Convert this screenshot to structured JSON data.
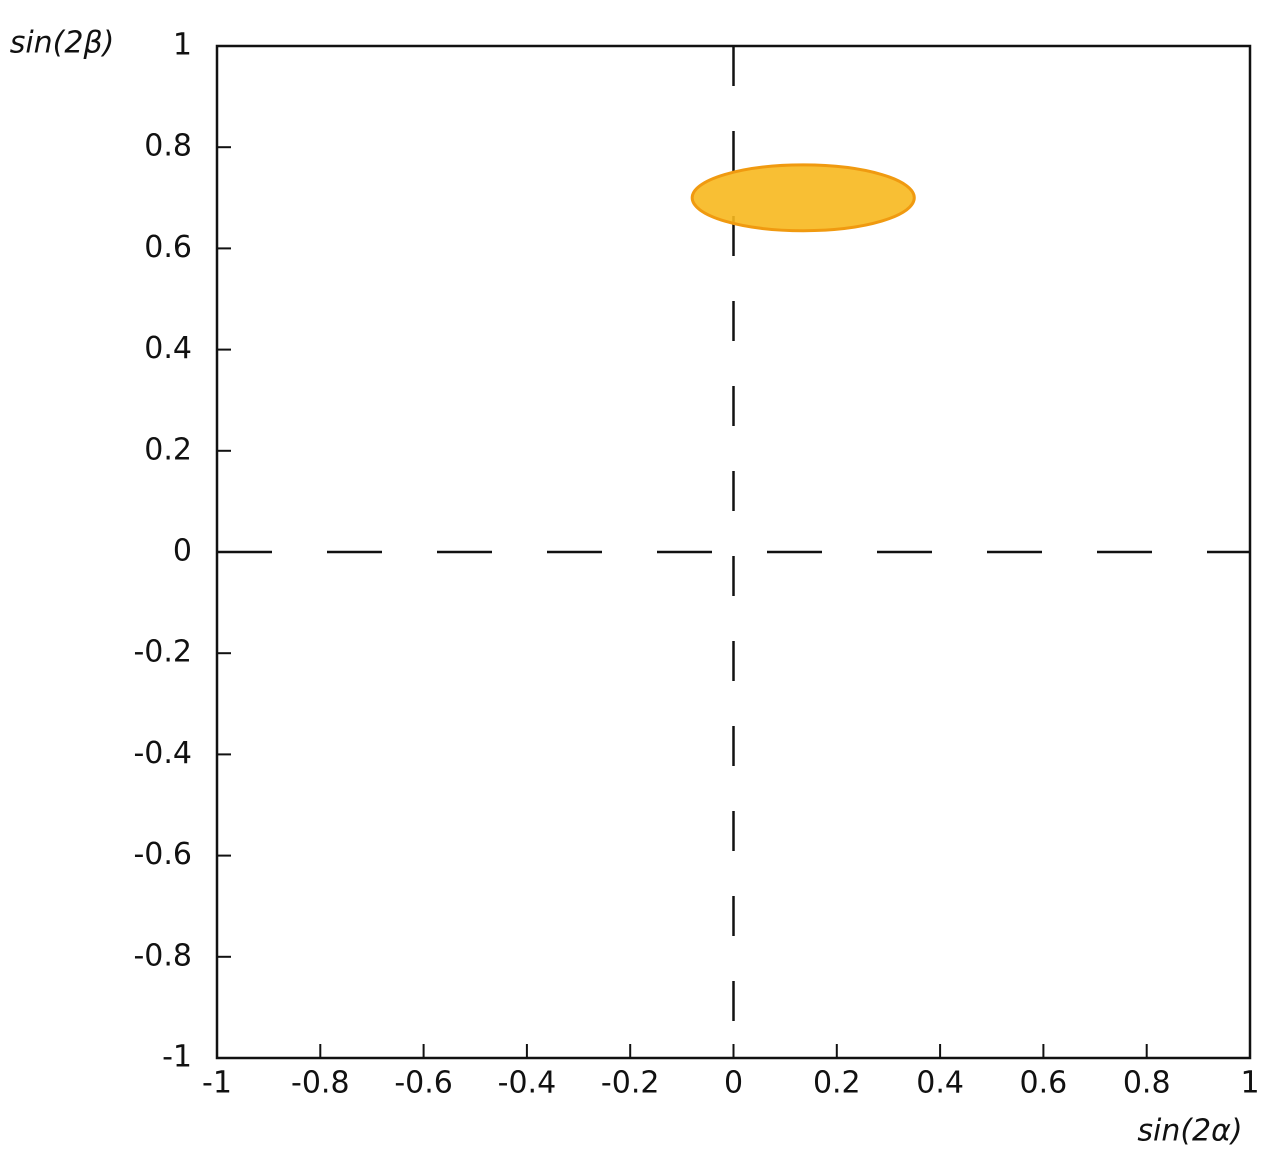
{
  "chart_data": {
    "type": "region",
    "x_label": "sin(2α)",
    "y_label": "sin(2β)",
    "xlim": [
      -1,
      1
    ],
    "ylim": [
      -1,
      1
    ],
    "xticks": [
      -1,
      -0.8,
      -0.6,
      -0.4,
      -0.2,
      0,
      0.2,
      0.4,
      0.6,
      0.8,
      1
    ],
    "yticks": [
      -1,
      -0.8,
      -0.6,
      -0.4,
      -0.2,
      0,
      0.2,
      0.4,
      0.6,
      0.8,
      1
    ],
    "zero_lines": true,
    "ellipse": {
      "cx": 0.135,
      "cy": 0.7,
      "rx": 0.215,
      "ry": 0.065,
      "color": "#f7b81e"
    }
  }
}
